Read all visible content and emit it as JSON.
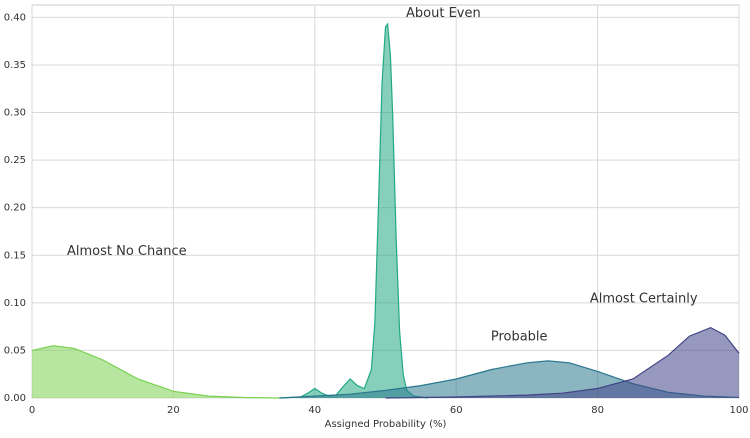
{
  "chart_data": {
    "type": "area",
    "x_label": "Assigned Probability (%)",
    "xlim": [
      0,
      100
    ],
    "xticks": [
      0,
      20,
      40,
      60,
      80,
      100
    ],
    "ylim": [
      0,
      0.413
    ],
    "yticks": [
      {
        "value": 0,
        "label": "0.00"
      },
      {
        "value": 0.05,
        "label": "0.05"
      },
      {
        "value": 0.1,
        "label": "0.10"
      },
      {
        "value": 0.15,
        "label": "0.15"
      },
      {
        "value": 0.2,
        "label": "0.20"
      },
      {
        "value": 0.25,
        "label": "0.25"
      },
      {
        "value": 0.3,
        "label": "0.30"
      },
      {
        "value": 0.35,
        "label": "0.35"
      },
      {
        "value": 0.4,
        "label": "0.40"
      }
    ],
    "grid": true,
    "series": [
      {
        "name": "Almost No Chance",
        "color": "#7ad151",
        "x": [
          0,
          3,
          6,
          10,
          15,
          20,
          25,
          30,
          35
        ],
        "values": [
          0.05,
          0.055,
          0.052,
          0.04,
          0.02,
          0.007,
          0.002,
          0.0005,
          0
        ]
      },
      {
        "name": "About Even",
        "color": "#22a884",
        "x": [
          35,
          38,
          39,
          40,
          41,
          42,
          43,
          44,
          45,
          46,
          47,
          48,
          48.5,
          49,
          49.5,
          50,
          50.3,
          50.7,
          51,
          51.5,
          52,
          52.5,
          53,
          54,
          56
        ],
        "values": [
          0,
          0.001,
          0.005,
          0.01,
          0.005,
          0.002,
          0.003,
          0.012,
          0.02,
          0.013,
          0.01,
          0.03,
          0.08,
          0.2,
          0.33,
          0.39,
          0.393,
          0.36,
          0.3,
          0.17,
          0.07,
          0.025,
          0.008,
          0.002,
          0
        ]
      },
      {
        "name": "Probable",
        "color": "#2a788e",
        "x": [
          35,
          40,
          45,
          50,
          55,
          60,
          65,
          70,
          73,
          76,
          80,
          85,
          90,
          95,
          100
        ],
        "values": [
          0,
          0.002,
          0.004,
          0.008,
          0.013,
          0.02,
          0.03,
          0.037,
          0.039,
          0.037,
          0.028,
          0.015,
          0.006,
          0.002,
          0.0005
        ]
      },
      {
        "name": "Almost Certainly",
        "color": "#414487",
        "x": [
          50,
          60,
          70,
          75,
          80,
          85,
          90,
          93,
          96,
          98,
          100
        ],
        "values": [
          0,
          0.001,
          0.003,
          0.005,
          0.01,
          0.02,
          0.045,
          0.065,
          0.074,
          0.066,
          0.047
        ]
      }
    ],
    "annotations": [
      {
        "text": "About Even",
        "x": 52.9,
        "y": 0.404
      },
      {
        "text": "Almost No Chance",
        "x": 4.95,
        "y": 0.154
      },
      {
        "text": "Probable",
        "x": 64.9,
        "y": 0.064
      },
      {
        "text": "Almost Certainly",
        "x": 78.9,
        "y": 0.104
      }
    ]
  }
}
